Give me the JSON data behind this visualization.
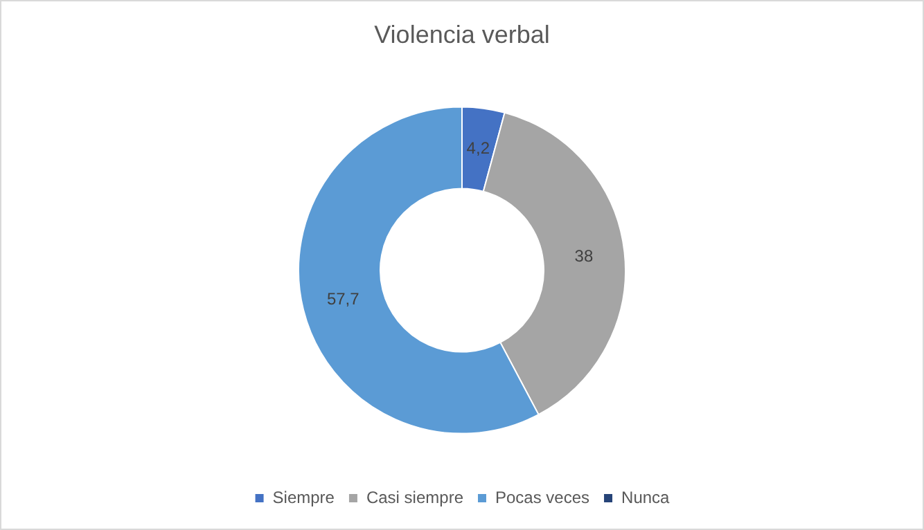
{
  "chart_data": {
    "type": "donut",
    "title": "Violencia verbal",
    "categories": [
      "Siempre",
      "Casi siempre",
      "Pocas veces",
      "Nunca"
    ],
    "values": [
      4.2,
      38,
      57.7,
      0
    ],
    "value_labels": [
      "4,2",
      "38",
      "57,7",
      null
    ],
    "colors": [
      "#4472c4",
      "#a5a5a5",
      "#5b9bd5",
      "#264478"
    ],
    "legend": "bottom"
  }
}
